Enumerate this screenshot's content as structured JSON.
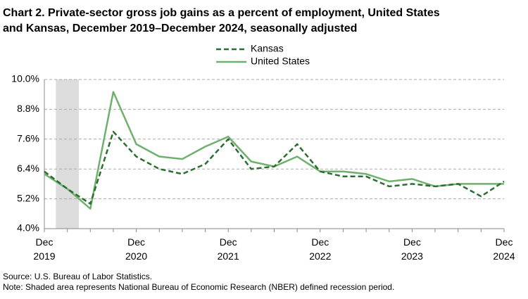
{
  "chart_data": {
    "type": "line",
    "title": [
      "Chart 2. Private-sector gross job gains as a percent of employment, United States",
      "and Kansas, December 2019–December 2024, seasonally adjusted"
    ],
    "categories": [
      "Dec 2019",
      null,
      null,
      null,
      "Dec 2020",
      null,
      null,
      null,
      "Dec 2021",
      null,
      null,
      null,
      "Dec 2022",
      null,
      null,
      null,
      "Dec 2023",
      null,
      null,
      null,
      "Dec 2024"
    ],
    "series": [
      {
        "name": "Kansas",
        "color": "#2b6e31",
        "dash": true,
        "values": [
          6.3,
          5.6,
          5.0,
          7.9,
          6.9,
          6.4,
          6.2,
          6.6,
          7.6,
          6.4,
          6.5,
          7.4,
          6.3,
          6.1,
          6.1,
          5.7,
          5.8,
          5.7,
          5.8,
          5.3,
          5.9
        ]
      },
      {
        "name": "United States",
        "color": "#6fb06f",
        "dash": false,
        "values": [
          6.2,
          5.6,
          4.8,
          9.5,
          7.4,
          6.9,
          6.8,
          7.3,
          7.7,
          6.7,
          6.5,
          6.9,
          6.3,
          6.3,
          6.2,
          5.9,
          6.0,
          5.7,
          5.8,
          5.8,
          5.8
        ]
      }
    ],
    "shaded_region": {
      "from": 0.5,
      "to": 1.5
    },
    "ylim": [
      4.0,
      10.0
    ],
    "yticks": [
      {
        "value": 4.0,
        "label": "4.0%"
      },
      {
        "value": 5.2,
        "label": "5.2%"
      },
      {
        "value": 6.4,
        "label": "6.4%"
      },
      {
        "value": 7.6,
        "label": "7.6%"
      },
      {
        "value": 8.8,
        "label": "8.8%"
      },
      {
        "value": 10.0,
        "label": "10.0%"
      }
    ],
    "grid": true,
    "legend": "top",
    "notes": [
      "Source: U.S. Bureau of Labor Statistics.",
      "Note: Shaded area represents National Bureau of Economic Research (NBER) defined recession period."
    ]
  }
}
